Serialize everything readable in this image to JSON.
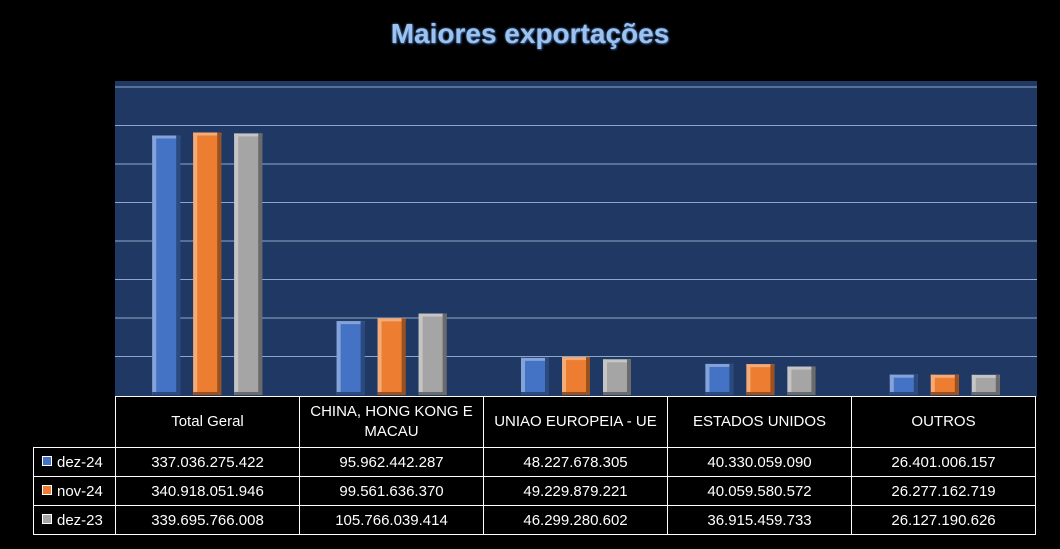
{
  "chart_data": {
    "type": "bar",
    "title": "Maiores exportações",
    "categories": [
      "Total Geral",
      "CHINA, HONG KONG E MACAU",
      "UNIAO EUROPEIA - UE",
      "ESTADOS UNIDOS",
      "OUTROS"
    ],
    "series": [
      {
        "name": "dez-24",
        "color": "#4472c4",
        "values": [
          337036275422,
          95962442287,
          48227678305,
          40330059090,
          26401006157
        ],
        "labels": [
          "337.036.275.422",
          "95.962.442.287",
          "48.227.678.305",
          "40.330.059.090",
          "26.401.006.157"
        ]
      },
      {
        "name": "nov-24",
        "color": "#ed7d31",
        "values": [
          340918051946,
          99561636370,
          49229879221,
          40059580572,
          26277162719
        ],
        "labels": [
          "340.918.051.946",
          "99.561.636.370",
          "49.229.879.221",
          "40.059.580.572",
          "26.277.162.719"
        ]
      },
      {
        "name": "dez-23",
        "color": "#a5a5a5",
        "values": [
          339695766008,
          105766039414,
          46299280602,
          36915459733,
          26127190626
        ],
        "labels": [
          "339.695.766.008",
          "105.766.039.414",
          "46.299.280.602",
          "36.915.459.733",
          "26.127.190.626"
        ]
      }
    ],
    "ylim": [
      0,
      400000000000
    ],
    "grid": true,
    "legend": "data-table"
  }
}
